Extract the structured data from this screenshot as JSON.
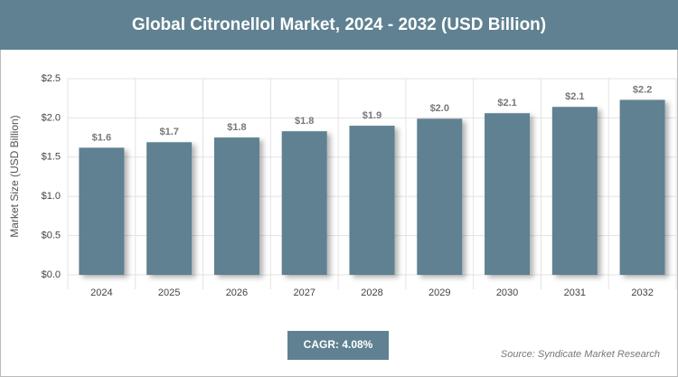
{
  "chart_data": {
    "type": "bar",
    "title": "Global Citronellol Market, 2024 - 2032 (USD Billion)",
    "y_axis_label": "Market Size (USD Billion)",
    "categories": [
      "2024",
      "2025",
      "2026",
      "2027",
      "2028",
      "2029",
      "2030",
      "2031",
      "2032"
    ],
    "values": [
      1.62,
      1.69,
      1.75,
      1.83,
      1.9,
      1.99,
      2.06,
      2.14,
      2.23
    ],
    "value_labels": [
      "$1.6",
      "$1.7",
      "$1.8",
      "$1.8",
      "$1.9",
      "$2.0",
      "$2.1",
      "$2.1",
      "$2.2"
    ],
    "color": "#5f8191",
    "ylim": [
      0,
      2.5
    ],
    "yticks": [
      {
        "value": 0,
        "label": "$0.0"
      },
      {
        "value": 0.5,
        "label": "$0.5"
      },
      {
        "value": 1,
        "label": "$1.0"
      },
      {
        "value": 1.5,
        "label": "$1.5"
      },
      {
        "value": 2,
        "label": "$2.0"
      },
      {
        "value": 2.5,
        "label": "$2.5"
      }
    ],
    "grid": true,
    "annotations": [
      "CAGR: 4.08%",
      "Source: Syndicate Market Research"
    ]
  }
}
